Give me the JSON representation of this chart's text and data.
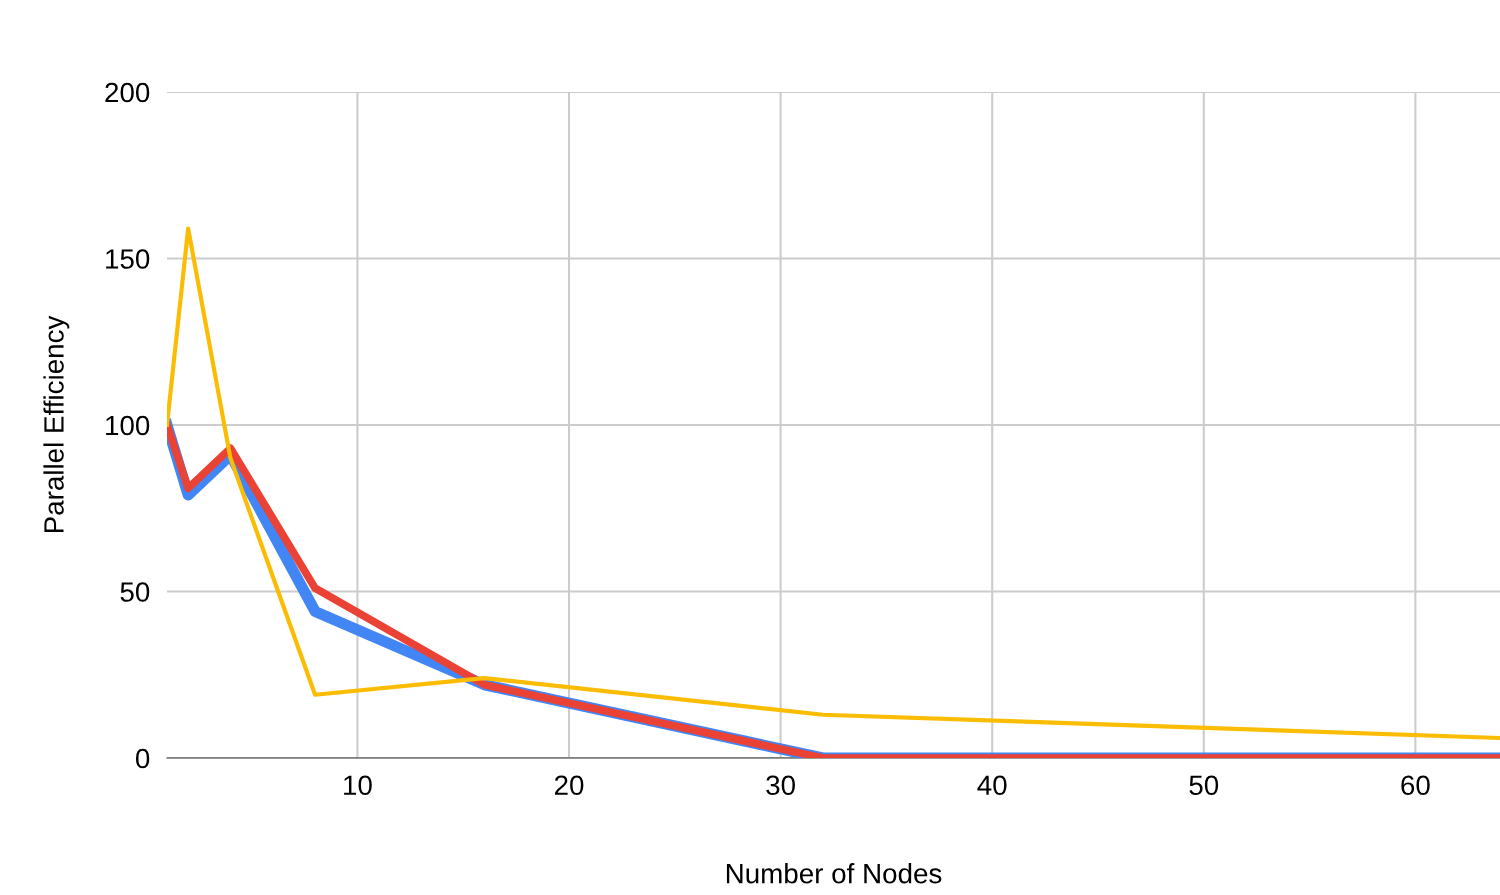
{
  "chart_data": {
    "type": "line",
    "xlabel": "Number of Nodes",
    "ylabel": "Parallel Efficiency",
    "x": [
      1,
      2,
      4,
      8,
      16,
      32,
      64
    ],
    "series": [
      {
        "color": "#4285f4",
        "values": [
          100,
          79,
          91,
          44,
          22,
          0,
          0
        ]
      },
      {
        "color": "#ea4335",
        "values": [
          100,
          81,
          93,
          51,
          22,
          0,
          0
        ]
      },
      {
        "color": "#fbbc04",
        "values": [
          100,
          159,
          90,
          19,
          24,
          13,
          6
        ]
      }
    ],
    "xlim": [
      1,
      64
    ],
    "xticks": [
      10,
      20,
      30,
      40,
      50,
      60
    ],
    "ylim": [
      0,
      200
    ],
    "yticks": [
      0,
      50,
      100,
      150,
      200
    ],
    "grid": true
  }
}
